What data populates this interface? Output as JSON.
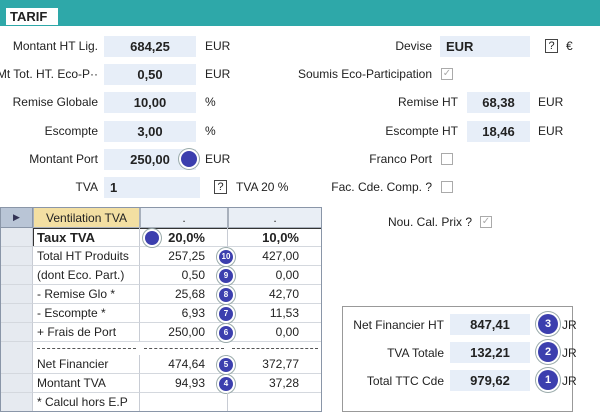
{
  "header": {
    "title": "TARIF"
  },
  "left_fields": [
    {
      "label": "Montant HT Lig.",
      "value": "684,25",
      "unit": "EUR"
    },
    {
      "label": "Mt Tot. HT. Eco-P··",
      "value": "0,50",
      "unit": "EUR"
    },
    {
      "label": "Remise Globale",
      "value": "10,00",
      "unit": "%"
    },
    {
      "label": "Escompte",
      "value": "3,00",
      "unit": "%"
    },
    {
      "label": "Montant Port",
      "value": "250,00",
      "unit": "EUR"
    },
    {
      "label": "TVA",
      "value": "1",
      "help": "?",
      "unit": "TVA 20 %"
    }
  ],
  "right_fields": [
    {
      "label": "Devise",
      "value": "EUR",
      "help": "?",
      "unit": "€"
    },
    {
      "label": "Soumis Eco-Participation",
      "checked": true
    },
    {
      "label": "Remise HT",
      "value": "68,38",
      "unit": "EUR"
    },
    {
      "label": "Escompte HT",
      "value": "18,46",
      "unit": "EUR"
    },
    {
      "label": "Franco Port",
      "checked": false
    },
    {
      "label": "Fac. Cde. Comp. ?",
      "checked": false
    }
  ],
  "table": {
    "header": [
      "Ventilation TVA",
      ".",
      "."
    ],
    "rows": [
      {
        "cells": [
          "Taux TVA",
          "20,0%",
          "10,0%"
        ]
      },
      {
        "cells": [
          "Total HT Produits",
          "257,25",
          "427,00"
        ],
        "badge": "10"
      },
      {
        "cells": [
          "(dont Eco. Part.)",
          "0,50",
          "0,00"
        ],
        "badge": "9"
      },
      {
        "cells": [
          "- Remise Glo *",
          "25,68",
          "42,70"
        ],
        "badge": "8"
      },
      {
        "cells": [
          "- Escompte *",
          "6,93",
          "11,53"
        ],
        "badge": "7"
      },
      {
        "cells": [
          "+ Frais de Port",
          "250,00",
          "0,00"
        ],
        "badge": "6"
      },
      {
        "cells": [
          "Net Financier",
          "474,64",
          "372,77"
        ],
        "badge": "5"
      },
      {
        "cells": [
          "Montant TVA",
          "94,93",
          "37,28"
        ],
        "badge": "4"
      },
      {
        "cells": [
          "* Calcul hors E.P"
        ]
      }
    ]
  },
  "recalc": {
    "label": "Nou. Cal. Prix ?",
    "checked": true
  },
  "summary": [
    {
      "label": "Net Financier HT",
      "value": "847,41",
      "badge": "3",
      "unit": "JR"
    },
    {
      "label": "TVA Totale",
      "value": "132,21",
      "badge": "2",
      "unit": "JR"
    },
    {
      "label": "Total TTC Cde",
      "value": "979,62",
      "badge": "1",
      "unit": "JR"
    }
  ]
}
